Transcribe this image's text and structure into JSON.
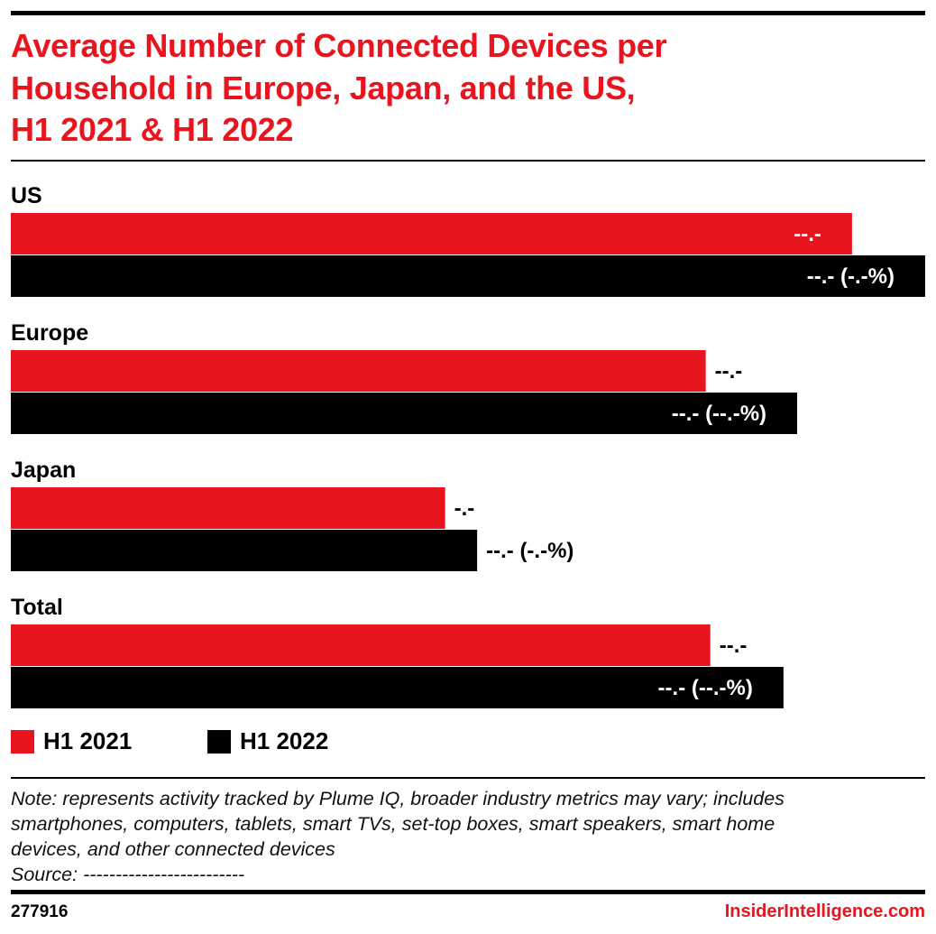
{
  "chart_data": {
    "type": "bar",
    "orientation": "horizontal",
    "title": "Average Number of Connected Devices per Household in Europe, Japan, and the US, H1 2021 & H1 2022",
    "categories": [
      "US",
      "Europe",
      "Japan",
      "Total"
    ],
    "series": [
      {
        "name": "H1 2021",
        "color": "#e8141e",
        "values": [
          18.4,
          15.2,
          9.5,
          15.3
        ],
        "labels": [
          "--.-",
          "--.-",
          "-.-",
          "--.-"
        ]
      },
      {
        "name": "H1 2022",
        "color": "#000000",
        "values": [
          20.0,
          17.2,
          10.2,
          16.9
        ],
        "labels": [
          "--.- (-.-%)",
          "--.- (--.-%)",
          "--.- (-.-%)",
          "--.- (--.-%)"
        ]
      }
    ],
    "xlim": [
      0,
      20.0
    ],
    "grid": false,
    "legend": "bottom-left"
  },
  "title_lines": [
    "Average Number of Connected Devices per",
    "Household in Europe, Japan, and the US,",
    "H1 2021 & H1 2022"
  ],
  "note_lines": [
    "Note: represents activity tracked by Plume IQ, broader industry metrics may vary; includes",
    "smartphones, computers, tablets, smart TVs, set-top boxes, smart speakers, smart home",
    "devices, and other connected devices",
    "Source: -------------------------"
  ],
  "footer": {
    "id": "277916",
    "brand": "InsiderIntelligence.com"
  }
}
